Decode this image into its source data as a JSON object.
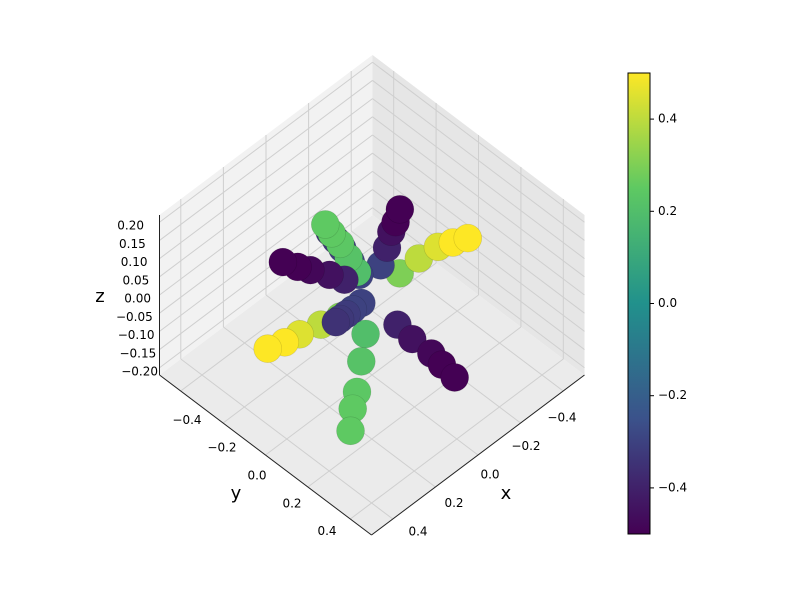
{
  "chart_data": {
    "type": "scatter3d",
    "xlabel": "x",
    "ylabel": "y",
    "zlabel": "z",
    "x": [
      -0.11,
      -0.19,
      -0.26,
      -0.32,
      -0.38,
      -0.09,
      -0.16,
      -0.22,
      -0.26,
      -0.31,
      -0.01,
      -0.02,
      -0.03,
      -0.03,
      -0.04,
      0.02,
      0.03,
      0.04,
      0.05,
      0.06,
      0.04,
      0.06,
      0.09,
      0.11,
      0.13,
      0.12,
      0.19,
      0.27,
      0.33,
      0.39,
      0.01,
      0.02,
      0.02,
      0.03,
      0.04,
      0.08,
      0.13,
      0.19,
      0.23,
      0.27,
      0.05,
      0.09,
      0.12,
      0.15,
      0.17
    ],
    "y": [
      0.02,
      0.03,
      0.05,
      0.06,
      0.07,
      -0.05,
      -0.09,
      -0.13,
      -0.15,
      -0.18,
      -0.07,
      -0.12,
      -0.17,
      -0.2,
      -0.24,
      -0.05,
      -0.08,
      -0.11,
      -0.14,
      -0.16,
      -0.09,
      -0.14,
      -0.2,
      -0.24,
      -0.29,
      -0.03,
      -0.05,
      -0.07,
      -0.08,
      -0.1,
      0.13,
      0.21,
      0.3,
      0.36,
      0.43,
      0.05,
      0.08,
      0.12,
      0.14,
      0.17,
      0,
      0,
      0,
      0,
      0
    ],
    "z": [
      0.02,
      0.03,
      0.04,
      0.03,
      0.02,
      0.02,
      0.02,
      0.02,
      0.02,
      0.02,
      0.02,
      0.03,
      0.04,
      0.05,
      0.05,
      0.05,
      0.08,
      0.11,
      0.13,
      0.15,
      0.02,
      0.02,
      0.02,
      0.02,
      0.02,
      -0.02,
      -0.02,
      -0.02,
      -0.02,
      -0.02,
      -0.02,
      -0.02,
      -0.02,
      -0.02,
      -0.02,
      -0.05,
      -0.09,
      -0.13,
      -0.15,
      -0.18,
      0,
      0,
      0,
      0,
      0
    ],
    "c": [
      0.3,
      0.4,
      0.45,
      0.5,
      0.5,
      -0.3,
      -0.4,
      -0.45,
      -0.5,
      -0.5,
      -0.3,
      -0.3,
      -0.32,
      -0.33,
      -0.35,
      0.2,
      0.22,
      0.24,
      0.25,
      0.25,
      -0.4,
      -0.45,
      -0.48,
      -0.5,
      -0.5,
      0.3,
      0.4,
      0.45,
      0.5,
      0.5,
      -0.4,
      -0.45,
      -0.48,
      -0.5,
      -0.5,
      0.2,
      0.22,
      0.24,
      0.25,
      0.25,
      -0.3,
      -0.3,
      -0.32,
      -0.33,
      -0.35
    ],
    "colormap": "viridis",
    "xlim": [
      -0.5,
      0.5
    ],
    "ylim": [
      -0.5,
      0.5
    ],
    "zlim": [
      -0.22,
      0.22
    ],
    "xticks": [
      {
        "value": -0.4,
        "label": "−0.4"
      },
      {
        "value": -0.2,
        "label": "−0.2"
      },
      {
        "value": 0,
        "label": "0.0"
      },
      0.2,
      0.4
    ],
    "yticks": [
      {
        "value": -0.4,
        "label": "−0.4"
      },
      {
        "value": -0.2,
        "label": "−0.2"
      },
      {
        "value": 0,
        "label": "0.0"
      },
      0.2,
      0.4
    ],
    "zticks": [
      {
        "value": -0.2,
        "label": "−0.20"
      },
      {
        "value": -0.15,
        "label": "−0.15"
      },
      {
        "value": -0.1,
        "label": "−0.10"
      },
      {
        "value": -0.05,
        "label": "−0.05"
      },
      {
        "value": 0,
        "label": "0.00"
      },
      {
        "value": 0.05,
        "label": "0.05"
      },
      {
        "value": 0.1,
        "label": "0.10"
      },
      {
        "value": 0.15,
        "label": "0.15"
      },
      {
        "value": 0.2,
        "label": "0.20"
      }
    ],
    "clim": [
      -0.5,
      0.5
    ],
    "cticks": [
      {
        "value": -0.4,
        "label": "−0.4"
      },
      {
        "value": -0.2,
        "label": "−0.2"
      },
      {
        "value": 0,
        "label": "0.0"
      },
      0.2,
      0.4
    ],
    "grid": true
  }
}
